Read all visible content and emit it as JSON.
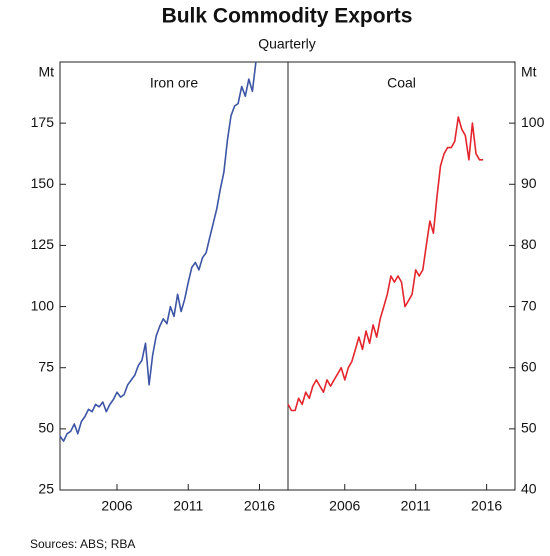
{
  "title": "Bulk Commodity Exports",
  "subtitle": "Quarterly",
  "source": "Sources:  ABS; RBA",
  "chart_data": [
    {
      "type": "line",
      "title": "Iron ore",
      "y_label": "Mt",
      "side": "left",
      "x": [
        2002,
        2002.25,
        2002.5,
        2002.75,
        2003,
        2003.25,
        2003.5,
        2003.75,
        2004,
        2004.25,
        2004.5,
        2004.75,
        2005,
        2005.25,
        2005.5,
        2005.75,
        2006,
        2006.25,
        2006.5,
        2006.75,
        2007,
        2007.25,
        2007.5,
        2007.75,
        2008,
        2008.25,
        2008.5,
        2008.75,
        2009,
        2009.25,
        2009.5,
        2009.75,
        2010,
        2010.25,
        2010.5,
        2010.75,
        2011,
        2011.25,
        2011.5,
        2011.75,
        2012,
        2012.25,
        2012.5,
        2012.75,
        2013,
        2013.25,
        2013.5,
        2013.75,
        2014,
        2014.25,
        2014.5,
        2014.75,
        2015,
        2015.25,
        2015.5,
        2015.75
      ],
      "xlim": [
        2002,
        2018
      ],
      "xticks": [
        2006,
        2011,
        2016
      ],
      "ylim": [
        25,
        200
      ],
      "yticks": [
        25,
        50,
        75,
        100,
        125,
        150,
        175
      ],
      "series": [
        {
          "name": "Iron ore",
          "color": "#3c55a5",
          "values": [
            47,
            45,
            48,
            49,
            52,
            48,
            53,
            55,
            58,
            57,
            60,
            59,
            61,
            57,
            60,
            62,
            65,
            63,
            64,
            68,
            70,
            72,
            76,
            78,
            85,
            68,
            80,
            88,
            92,
            95,
            93,
            100,
            96,
            105,
            98,
            103,
            110,
            116,
            118,
            115,
            120,
            122,
            128,
            134,
            140,
            148,
            155,
            168,
            178,
            182,
            183,
            190,
            186,
            193,
            188,
            200
          ]
        }
      ]
    },
    {
      "type": "line",
      "title": "Coal",
      "y_label": "Mt",
      "side": "right",
      "x": [
        2002,
        2002.25,
        2002.5,
        2002.75,
        2003,
        2003.25,
        2003.5,
        2003.75,
        2004,
        2004.25,
        2004.5,
        2004.75,
        2005,
        2005.25,
        2005.5,
        2005.75,
        2006,
        2006.25,
        2006.5,
        2006.75,
        2007,
        2007.25,
        2007.5,
        2007.75,
        2008,
        2008.25,
        2008.5,
        2008.75,
        2009,
        2009.25,
        2009.5,
        2009.75,
        2010,
        2010.25,
        2010.5,
        2010.75,
        2011,
        2011.25,
        2011.5,
        2011.75,
        2012,
        2012.25,
        2012.5,
        2012.75,
        2013,
        2013.25,
        2013.5,
        2013.75,
        2014,
        2014.25,
        2014.5,
        2014.75,
        2015,
        2015.25,
        2015.5,
        2015.75
      ],
      "xlim": [
        2002,
        2018
      ],
      "xticks": [
        2006,
        2011,
        2016
      ],
      "ylim": [
        40,
        110
      ],
      "yticks": [
        40,
        50,
        60,
        70,
        80,
        90,
        100
      ],
      "series": [
        {
          "name": "Coal",
          "color": "#e3262d",
          "values": [
            54,
            53,
            53,
            55,
            54,
            56,
            55,
            57,
            58,
            57,
            56,
            58,
            57,
            58,
            59,
            60,
            58,
            60,
            61,
            63,
            65,
            63,
            66,
            64,
            67,
            65,
            68,
            70,
            72,
            75,
            74,
            75,
            74,
            70,
            71,
            72,
            76,
            75,
            76,
            80,
            84,
            82,
            88,
            93,
            95,
            96,
            96,
            97,
            101,
            99,
            98,
            94,
            100,
            95,
            94,
            94
          ]
        }
      ]
    }
  ]
}
